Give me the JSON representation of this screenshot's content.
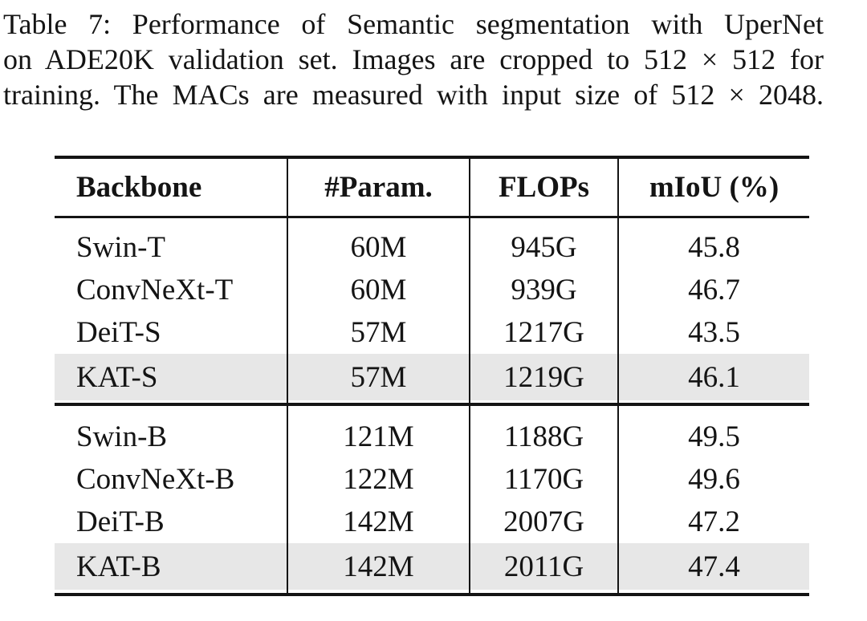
{
  "caption": {
    "lines": [
      "Table 7: Performance of Semantic segmentation with UperNet",
      "on ADE20K validation set. Images are cropped to 512 × 512 for",
      "training. The MACs are measured with input size of 512 × 2048."
    ]
  },
  "table": {
    "headers": [
      {
        "key": "backbone",
        "label": "Backbone"
      },
      {
        "key": "params",
        "label": "#Param."
      },
      {
        "key": "flops",
        "label": "FLOPs"
      },
      {
        "key": "miou",
        "label": "mIoU (%)"
      }
    ],
    "groups": [
      {
        "rows": [
          {
            "backbone": "Swin-T",
            "params": "60M",
            "flops": "945G",
            "miou": "45.8",
            "highlight": false
          },
          {
            "backbone": "ConvNeXt-T",
            "params": "60M",
            "flops": "939G",
            "miou": "46.7",
            "highlight": false
          },
          {
            "backbone": "DeiT-S",
            "params": "57M",
            "flops": "1217G",
            "miou": "43.5",
            "highlight": false
          },
          {
            "backbone": "KAT-S",
            "params": "57M",
            "flops": "1219G",
            "miou": "46.1",
            "highlight": true
          }
        ]
      },
      {
        "rows": [
          {
            "backbone": "Swin-B",
            "params": "121M",
            "flops": "1188G",
            "miou": "49.5",
            "highlight": false
          },
          {
            "backbone": "ConvNeXt-B",
            "params": "122M",
            "flops": "1170G",
            "miou": "49.6",
            "highlight": false
          },
          {
            "backbone": "DeiT-B",
            "params": "142M",
            "flops": "2007G",
            "miou": "47.2",
            "highlight": false
          },
          {
            "backbone": "KAT-B",
            "params": "142M",
            "flops": "2011G",
            "miou": "47.4",
            "highlight": true
          }
        ]
      }
    ]
  },
  "chart_data": {
    "type": "table",
    "title": "Table 7: Performance of Semantic segmentation with UperNet on ADE20K validation set.",
    "columns": [
      "Backbone",
      "#Param.",
      "FLOPs",
      "mIoU (%)"
    ],
    "rows": [
      [
        "Swin-T",
        "60M",
        "945G",
        45.8
      ],
      [
        "ConvNeXt-T",
        "60M",
        "939G",
        46.7
      ],
      [
        "DeiT-S",
        "57M",
        "1217G",
        43.5
      ],
      [
        "KAT-S",
        "57M",
        "1219G",
        46.1
      ],
      [
        "Swin-B",
        "121M",
        "1188G",
        49.5
      ],
      [
        "ConvNeXt-B",
        "122M",
        "1170G",
        49.6
      ],
      [
        "DeiT-B",
        "142M",
        "2007G",
        47.2
      ],
      [
        "KAT-B",
        "142M",
        "2011G",
        47.4
      ]
    ]
  },
  "colors": {
    "text": "#141414",
    "rule": "#141414",
    "highlight": "#e7e7e7",
    "background": "#ffffff"
  }
}
